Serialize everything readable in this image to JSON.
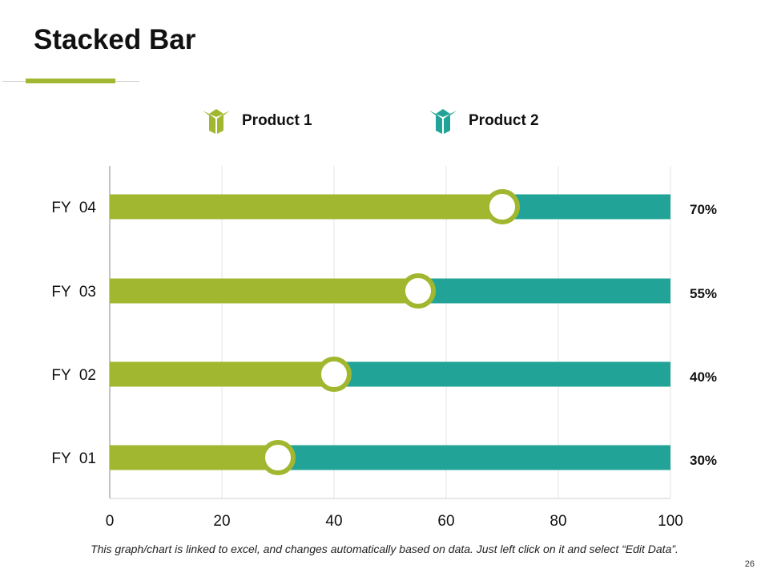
{
  "page": {
    "title": "Stacked Bar",
    "footnote": "This graph/chart is linked to excel, and changes automatically based on data. Just left click on it and select “Edit Data”.",
    "page_number": "26"
  },
  "legend": [
    {
      "label": "Product 1",
      "color": "#a0b72f",
      "icon": "box-icon"
    },
    {
      "label": "Product 2",
      "color": "#21a497",
      "icon": "box-icon"
    }
  ],
  "colors": {
    "accent": "#a0b72f",
    "product1": "#a0b72f",
    "product2": "#21a497",
    "grid": "#e4e4e4",
    "axis": "#8a8a8a"
  },
  "chart_data": {
    "type": "bar",
    "orientation": "horizontal",
    "stacked": true,
    "title": "Stacked Bar",
    "categories": [
      "FY  01",
      "FY  02",
      "FY  03",
      "FY  04"
    ],
    "series": [
      {
        "name": "Product 1",
        "values": [
          30,
          40,
          55,
          70
        ]
      },
      {
        "name": "Product 2",
        "values": [
          70,
          60,
          45,
          30
        ]
      }
    ],
    "data_labels": [
      "30%",
      "40%",
      "55%",
      "70%"
    ],
    "xlim": [
      0,
      100
    ],
    "xticks": [
      "0",
      "20",
      "40",
      "60",
      "80",
      "100"
    ],
    "grid": true,
    "legend_position": "top"
  }
}
